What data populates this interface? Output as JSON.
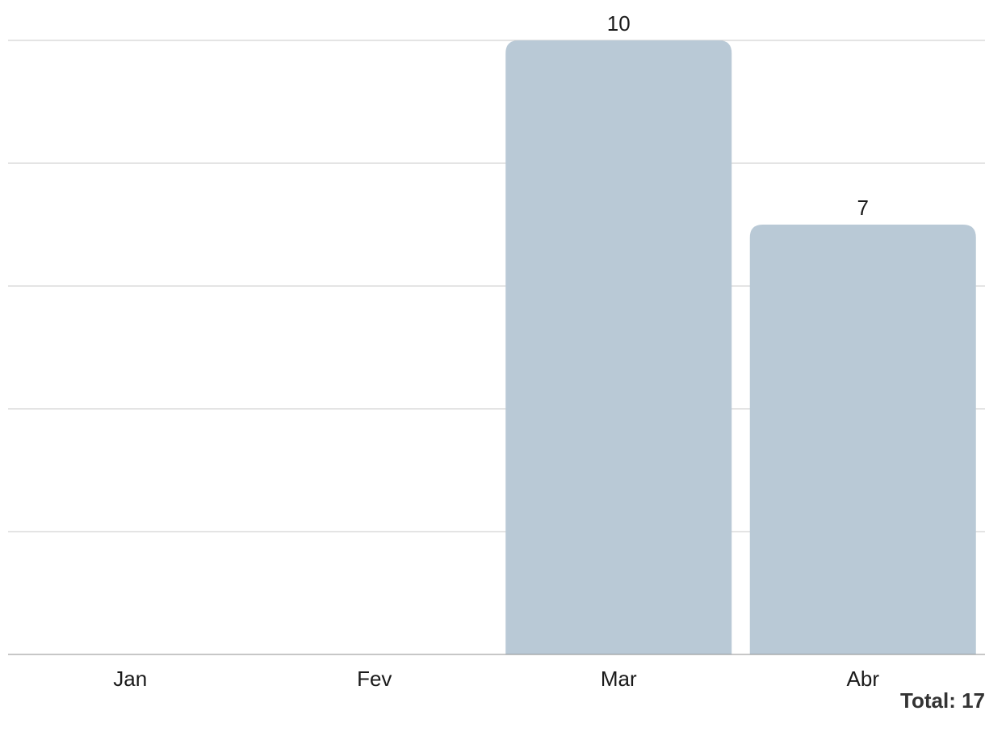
{
  "chart_data": {
    "type": "bar",
    "categories": [
      "Jan",
      "Fev",
      "Mar",
      "Abr"
    ],
    "values": [
      0,
      0,
      10,
      7
    ],
    "ylim": [
      0,
      10
    ],
    "grid": true,
    "title": "",
    "xlabel": "",
    "ylabel": "",
    "colors": {
      "bar": "#b9c9d6",
      "grid": "#c8c8c8"
    }
  },
  "footer": {
    "total_label": "Total: 17"
  }
}
